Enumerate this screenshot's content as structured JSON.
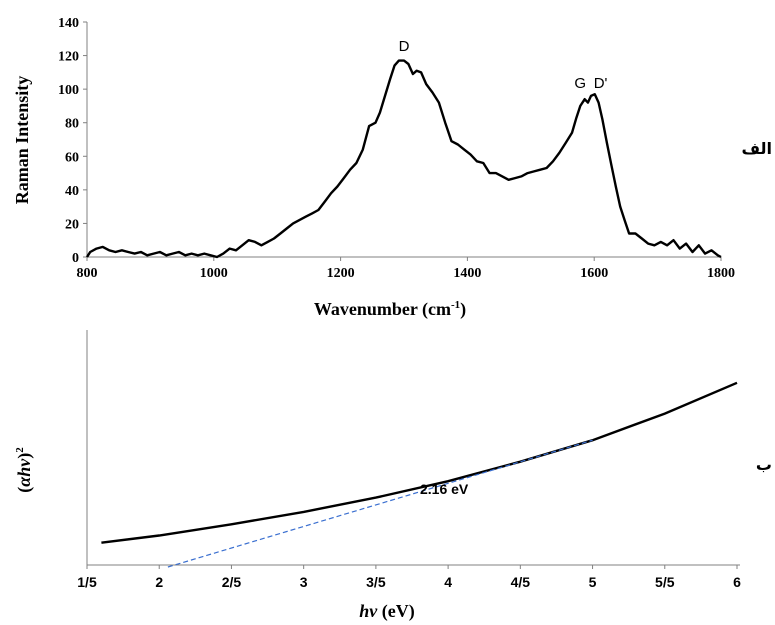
{
  "chart_data": [
    {
      "type": "line",
      "panel_label": "الف",
      "title": "",
      "xlabel": "Wavenumber (cm",
      "xlabel_sup": "-1",
      "xlabel_tail": ")",
      "ylabel": "Raman Intensity",
      "xlim": [
        800,
        1800
      ],
      "ylim": [
        0,
        140
      ],
      "x_ticks": [
        800,
        1000,
        1200,
        1400,
        1600,
        1800
      ],
      "y_ticks": [
        0,
        20,
        40,
        60,
        80,
        100,
        120,
        140
      ],
      "peak_labels": [
        {
          "text": "D",
          "x": 1300,
          "y": 118
        },
        {
          "text": "G",
          "x": 1578,
          "y": 96
        },
        {
          "text": "D'",
          "x": 1610,
          "y": 96
        }
      ],
      "series": [
        {
          "points": [
            [
              800,
              0
            ],
            [
              805,
              3
            ],
            [
              815,
              5
            ],
            [
              825,
              6
            ],
            [
              835,
              4
            ],
            [
              845,
              3
            ],
            [
              855,
              4
            ],
            [
              865,
              3
            ],
            [
              875,
              2
            ],
            [
              885,
              3
            ],
            [
              895,
              1
            ],
            [
              905,
              2
            ],
            [
              915,
              3
            ],
            [
              925,
              1
            ],
            [
              935,
              2
            ],
            [
              945,
              3
            ],
            [
              955,
              1
            ],
            [
              965,
              2
            ],
            [
              975,
              1
            ],
            [
              985,
              2
            ],
            [
              995,
              1
            ],
            [
              1005,
              0
            ],
            [
              1015,
              2
            ],
            [
              1025,
              5
            ],
            [
              1035,
              4
            ],
            [
              1045,
              7
            ],
            [
              1055,
              10
            ],
            [
              1065,
              9
            ],
            [
              1075,
              7
            ],
            [
              1085,
              9
            ],
            [
              1095,
              11
            ],
            [
              1105,
              14
            ],
            [
              1115,
              17
            ],
            [
              1125,
              20
            ],
            [
              1135,
              22
            ],
            [
              1145,
              24
            ],
            [
              1155,
              26
            ],
            [
              1165,
              28
            ],
            [
              1175,
              33
            ],
            [
              1185,
              38
            ],
            [
              1195,
              42
            ],
            [
              1205,
              47
            ],
            [
              1215,
              52
            ],
            [
              1225,
              56
            ],
            [
              1235,
              64
            ],
            [
              1245,
              78
            ],
            [
              1255,
              80
            ],
            [
              1262,
              86
            ],
            [
              1270,
              96
            ],
            [
              1278,
              106
            ],
            [
              1285,
              114
            ],
            [
              1292,
              117
            ],
            [
              1300,
              117
            ],
            [
              1307,
              115
            ],
            [
              1314,
              109
            ],
            [
              1320,
              111
            ],
            [
              1327,
              110
            ],
            [
              1335,
              103
            ],
            [
              1345,
              98
            ],
            [
              1355,
              92
            ],
            [
              1365,
              80
            ],
            [
              1375,
              69
            ],
            [
              1385,
              67
            ],
            [
              1395,
              64
            ],
            [
              1405,
              61
            ],
            [
              1415,
              57
            ],
            [
              1425,
              56
            ],
            [
              1435,
              50
            ],
            [
              1445,
              50
            ],
            [
              1455,
              48
            ],
            [
              1465,
              46
            ],
            [
              1475,
              47
            ],
            [
              1485,
              48
            ],
            [
              1495,
              50
            ],
            [
              1505,
              51
            ],
            [
              1515,
              52
            ],
            [
              1525,
              53
            ],
            [
              1535,
              57
            ],
            [
              1545,
              62
            ],
            [
              1555,
              68
            ],
            [
              1565,
              74
            ],
            [
              1572,
              83
            ],
            [
              1578,
              90
            ],
            [
              1585,
              94
            ],
            [
              1590,
              92
            ],
            [
              1595,
              96
            ],
            [
              1601,
              97
            ],
            [
              1607,
              92
            ],
            [
              1613,
              82
            ],
            [
              1620,
              68
            ],
            [
              1627,
              55
            ],
            [
              1634,
              42
            ],
            [
              1641,
              30
            ],
            [
              1648,
              22
            ],
            [
              1655,
              14
            ],
            [
              1665,
              14
            ],
            [
              1675,
              11
            ],
            [
              1685,
              8
            ],
            [
              1695,
              7
            ],
            [
              1705,
              9
            ],
            [
              1715,
              7
            ],
            [
              1725,
              10
            ],
            [
              1735,
              5
            ],
            [
              1745,
              8
            ],
            [
              1755,
              3
            ],
            [
              1765,
              7
            ],
            [
              1775,
              2
            ],
            [
              1785,
              4
            ],
            [
              1795,
              1
            ],
            [
              1800,
              0
            ]
          ]
        }
      ]
    },
    {
      "type": "line",
      "panel_label": "ب",
      "title": "",
      "xlabel_italic": "hv",
      "xlabel_tail": " (eV)",
      "ylabel_open": "(",
      "ylabel_italic": "αhv",
      "ylabel_close": ")",
      "ylabel_sup": "2",
      "xlim": [
        1.5,
        6
      ],
      "x_ticks": [
        1.5,
        2,
        2.5,
        3,
        3.5,
        4,
        4.5,
        5,
        5.5,
        6
      ],
      "x_tick_labels": [
        "1/5",
        "2",
        "2/5",
        "3",
        "3/5",
        "4",
        "4/5",
        "5",
        "5/5",
        "6"
      ],
      "y_tick_labels": [],
      "annotation": "2.16 eV",
      "series": [
        {
          "name": "",
          "style": "solid",
          "points": [
            [
              1.6,
              0.06
            ],
            [
              2.0,
              0.095
            ],
            [
              2.5,
              0.15
            ],
            [
              3.0,
              0.21
            ],
            [
              3.5,
              0.28
            ],
            [
              4.0,
              0.36
            ],
            [
              4.5,
              0.455
            ],
            [
              5.0,
              0.56
            ],
            [
              5.5,
              0.69
            ],
            [
              6.0,
              0.84
            ]
          ]
        },
        {
          "name": "",
          "style": "dashed",
          "points": [
            [
              2.06,
              -0.06
            ],
            [
              5.0,
              0.56
            ]
          ]
        }
      ]
    }
  ]
}
